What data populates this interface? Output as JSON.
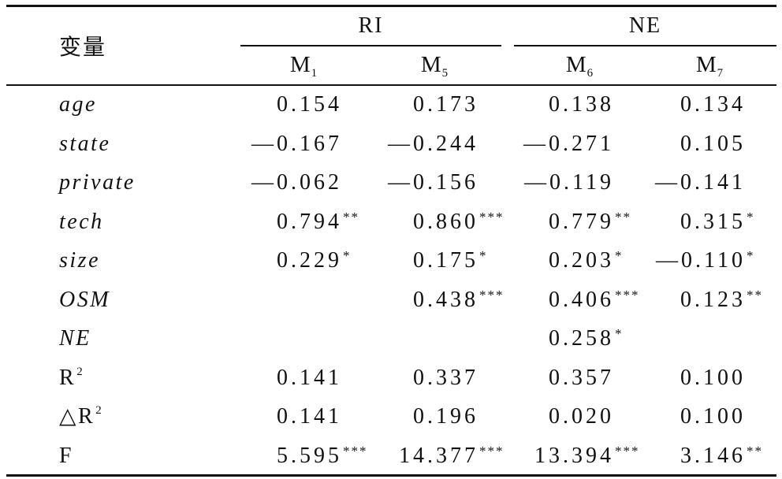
{
  "header": {
    "variable_label": "变量",
    "groups": [
      {
        "label": "RI"
      },
      {
        "label": "NE"
      }
    ],
    "models": [
      {
        "base": "M",
        "sub": "1"
      },
      {
        "base": "M",
        "sub": "5"
      },
      {
        "base": "M",
        "sub": "6"
      },
      {
        "base": "M",
        "sub": "7"
      }
    ]
  },
  "rows": [
    {
      "label": "age",
      "italic": true,
      "cells": [
        {
          "v": "0.154"
        },
        {
          "v": "0.173"
        },
        {
          "v": "0.138"
        },
        {
          "v": "0.134"
        }
      ]
    },
    {
      "label": "state",
      "italic": true,
      "cells": [
        {
          "v": "—0.167"
        },
        {
          "v": "—0.244"
        },
        {
          "v": "—0.271"
        },
        {
          "v": "0.105"
        }
      ]
    },
    {
      "label": "private",
      "italic": true,
      "cells": [
        {
          "v": "—0.062"
        },
        {
          "v": "—0.156"
        },
        {
          "v": "—0.119"
        },
        {
          "v": "—0.141"
        }
      ]
    },
    {
      "label": "tech",
      "italic": true,
      "cells": [
        {
          "v": "0.794",
          "sig": "**"
        },
        {
          "v": "0.860",
          "sig": "***"
        },
        {
          "v": "0.779",
          "sig": "**"
        },
        {
          "v": "0.315",
          "sig": "*"
        }
      ]
    },
    {
      "label": "size",
      "italic": true,
      "cells": [
        {
          "v": "0.229",
          "sig": "*"
        },
        {
          "v": "0.175",
          "sig": "*"
        },
        {
          "v": "0.203",
          "sig": "*"
        },
        {
          "v": "—0.110",
          "sig": "*"
        }
      ]
    },
    {
      "label": "OSM",
      "italic": true,
      "cells": [
        null,
        {
          "v": "0.438",
          "sig": "***"
        },
        {
          "v": "0.406",
          "sig": "***"
        },
        {
          "v": "0.123",
          "sig": "**"
        }
      ]
    },
    {
      "label": "NE",
      "italic": true,
      "cells": [
        null,
        null,
        {
          "v": "0.258",
          "sig": "*"
        },
        null
      ]
    },
    {
      "label": "R",
      "sup": "2",
      "cells": [
        {
          "v": "0.141"
        },
        {
          "v": "0.337"
        },
        {
          "v": "0.357"
        },
        {
          "v": "0.100"
        }
      ]
    },
    {
      "label": "△R",
      "sup": "2",
      "cells": [
        {
          "v": "0.141"
        },
        {
          "v": "0.196"
        },
        {
          "v": "0.020"
        },
        {
          "v": "0.100"
        }
      ]
    },
    {
      "label": "F",
      "cells": [
        {
          "v": "5.595",
          "sig": "***"
        },
        {
          "v": "14.377",
          "sig": "***"
        },
        {
          "v": "13.394",
          "sig": "***"
        },
        {
          "v": "3.146",
          "sig": "**"
        }
      ]
    }
  ]
}
